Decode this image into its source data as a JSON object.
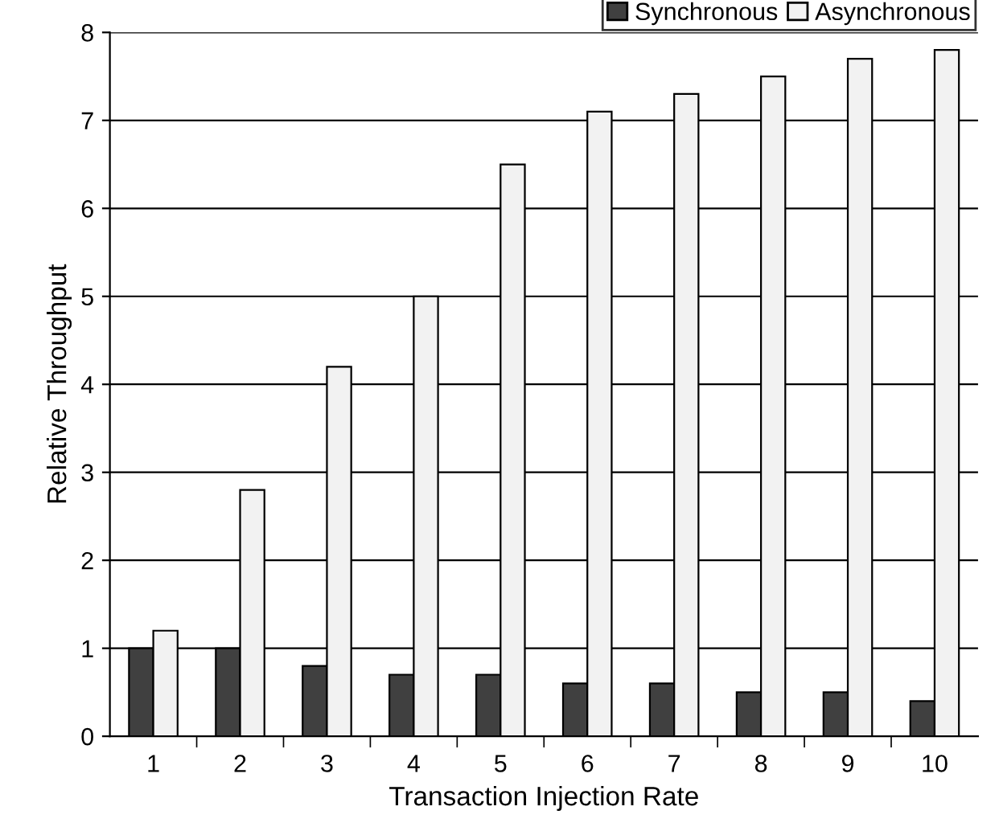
{
  "chart_data": {
    "type": "bar",
    "xlabel": "Transaction Injection Rate",
    "ylabel": "Relative Throughput",
    "categories": [
      "1",
      "2",
      "3",
      "4",
      "5",
      "6",
      "7",
      "8",
      "9",
      "10"
    ],
    "series": [
      {
        "name": "Synchronous",
        "color": "#404040",
        "values": [
          1,
          1,
          0.8,
          0.7,
          0.7,
          0.6,
          0.6,
          0.5,
          0.5,
          0.4
        ]
      },
      {
        "name": "Asynchronous",
        "color": "#f2f2f2",
        "values": [
          1.2,
          2.8,
          4.2,
          5,
          6.5,
          7.1,
          7.3,
          7.5,
          7.7,
          7.8
        ]
      }
    ],
    "ylim": [
      0,
      8
    ],
    "yticks": [
      0,
      1,
      2,
      3,
      4,
      5,
      6,
      7,
      8
    ],
    "grid": "y",
    "legend": "top right"
  }
}
